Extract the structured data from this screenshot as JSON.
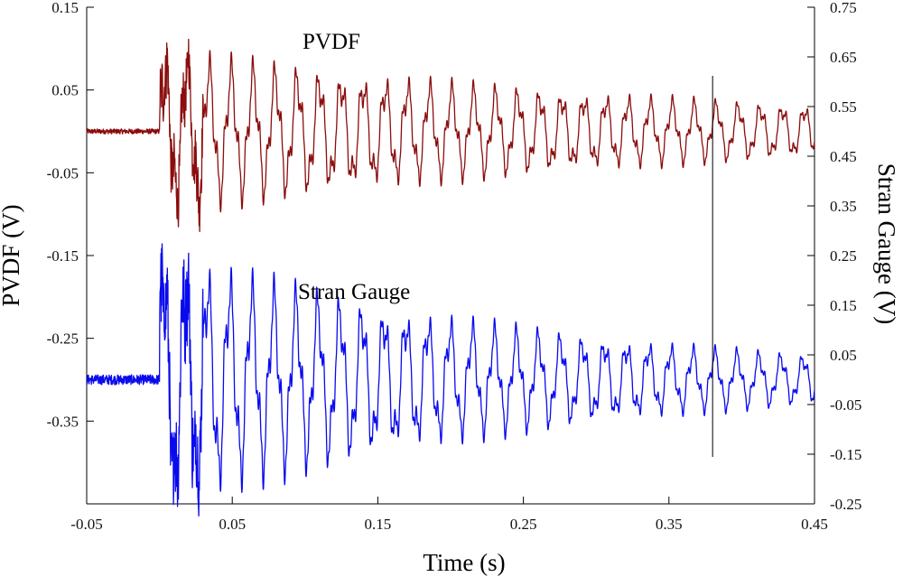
{
  "chart_data": {
    "type": "line",
    "xlabel": "Time (s)",
    "ylabel_left": "PVDF (V)",
    "ylabel_right": "Stran Gauge (V)",
    "xlim": [
      -0.05,
      0.45
    ],
    "ylim_left": [
      -0.45,
      0.15
    ],
    "ylim_right": [
      -0.25,
      0.75
    ],
    "x_ticks": [
      "-0.05",
      "0.05",
      "0.15",
      "0.25",
      "0.35",
      "0.45"
    ],
    "left_ticks": [
      "0.15",
      "0.05",
      "-0.05",
      "-0.15",
      "-0.25",
      "-0.35"
    ],
    "right_ticks": [
      "0.75",
      "0.65",
      "0.55",
      "0.45",
      "0.35",
      "0.25",
      "0.15",
      "0.05",
      "-0.05",
      "-0.15",
      "-0.25"
    ],
    "vline_x": 0.38,
    "series": [
      {
        "name": "PVDF",
        "label": "PVDF",
        "axis": "left",
        "color": "#8b0d0d",
        "baseline": 0.0,
        "onset": 0.0,
        "initial_amplitude": 0.075,
        "final_amplitude": 0.024,
        "frequency_hz": 66,
        "pre_noise": 0.003
      },
      {
        "name": "Stran Gauge",
        "label": "Stran Gauge",
        "axis": "right",
        "color": "#0a0aee",
        "baseline": 0.0,
        "onset": 0.0,
        "initial_amplitude": 0.2,
        "final_amplitude": 0.038,
        "frequency_hz": 66,
        "pre_noise": 0.01
      }
    ]
  }
}
